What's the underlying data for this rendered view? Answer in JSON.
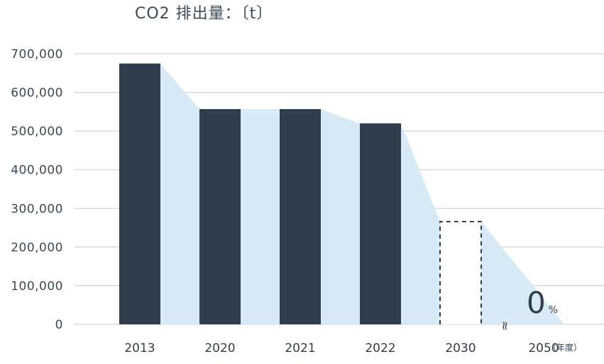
{
  "chart_data": {
    "type": "bar",
    "title": "CO2 排出量：〔t〕",
    "categories": [
      "2013",
      "2020",
      "2021",
      "2022",
      "2030",
      "2050"
    ],
    "values": [
      675000,
      557000,
      557000,
      520000,
      266000,
      0
    ],
    "bar_styles": [
      "solid",
      "solid",
      "solid",
      "solid",
      "dashed-outline",
      "none"
    ],
    "ylim": [
      0,
      700000
    ],
    "yticks": [
      "0",
      "100,000",
      "200,000",
      "300,000",
      "400,000",
      "500,000",
      "600,000",
      "700,000"
    ],
    "x_unit_label": "（年度）",
    "annotation": {
      "value": "0",
      "suffix": "%"
    },
    "axis_break_symbol": "≈",
    "grid": true,
    "colors": {
      "bar": "#2f3e4a",
      "area": "#d7eaf5",
      "grid": "#c8c8c8",
      "text": "#3c4a55"
    }
  }
}
